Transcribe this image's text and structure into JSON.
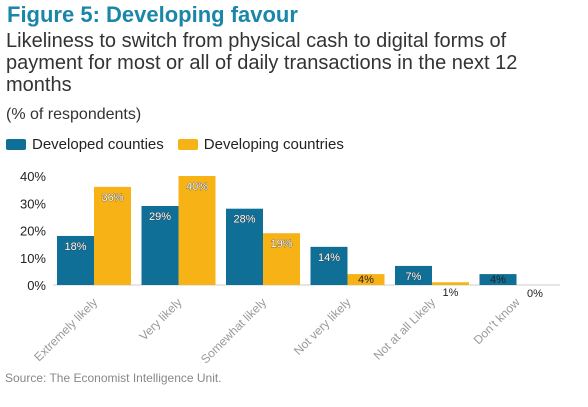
{
  "figure": {
    "title": "Figure 5: Developing favour",
    "subtitle": "Likeliness to switch from physical cash to digital forms of payment for most or all of daily transactions in the next 12 months",
    "unit": "(% of respondents)",
    "source": "Source: The Economist Intelligence Unit."
  },
  "colors": {
    "title": "#1a86a8",
    "series1": "#0f6f96",
    "series2": "#f7b216"
  },
  "chart_data": {
    "type": "bar",
    "categories": [
      "Extremely likely",
      "Very likely",
      "Somewhat likely",
      "Not very likely",
      "Not at all Likely",
      "Don’t know"
    ],
    "series": [
      {
        "name": "Developed counties",
        "values": [
          18,
          29,
          28,
          14,
          7,
          4
        ],
        "labels": [
          "18%",
          "29%",
          "28%",
          "14%",
          "7%",
          "4%"
        ]
      },
      {
        "name": "Developing countries",
        "values": [
          36,
          40,
          19,
          4,
          1,
          0
        ],
        "labels": [
          "36%",
          "40%",
          "19%",
          "4%",
          "1%",
          "0%"
        ]
      }
    ],
    "ylim": [
      0,
      40
    ],
    "yticks": [
      "0%",
      "10%",
      "20%",
      "30%",
      "40%"
    ],
    "grid": false,
    "legend": "top-left"
  }
}
